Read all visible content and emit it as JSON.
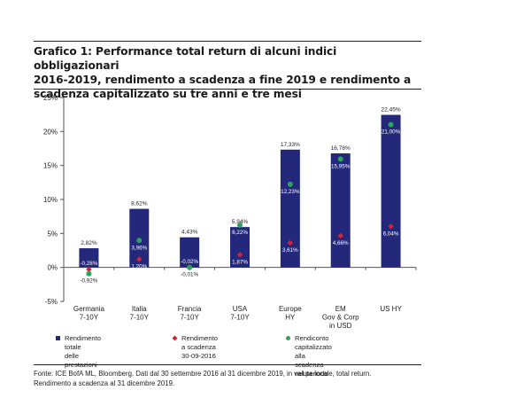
{
  "title": "Grafico 1: Performance total return di alcuni indici obbligazionari\n2016-2019, rendimento a scadenza a fine 2019 e rendimento a\nscadenza capitalizzato su tre anni e tre mesi",
  "footnote": {
    "line1": "Fonte: ICE BofA ML, Bloomberg. Dati dal 30 settembre 2016 al 31 dicembre 2019, in valuta locale, total return.",
    "line2": "Rendimento a scadenza al 31 dicembre 2019."
  },
  "colors": {
    "bar": "#23287a",
    "diamond": "#d2233c",
    "dot": "#2aa55c",
    "axis": "#555555"
  },
  "chart_data": {
    "type": "bar",
    "categories": [
      "Germania\n7-10Y",
      "Italia\n7-10Y",
      "Francia\n7-10Y",
      "USA\n7-10Y",
      "Europe\nHY",
      "EM\nGov & Corp\nin USD",
      "US HY"
    ],
    "ylim": [
      -5,
      25
    ],
    "yticks": [
      -5,
      0,
      5,
      10,
      15,
      20,
      25
    ],
    "ytick_labels": [
      "-5%",
      "0%",
      "5%",
      "10%",
      "15%",
      "20%",
      "25%"
    ],
    "grid": false,
    "legend_position": "bottom",
    "series": [
      {
        "name": "Rendimento totale\ndelle prestazioni",
        "kind": "bar",
        "values": [
          2.82,
          8.62,
          4.43,
          5.94,
          17.33,
          16.78,
          22.45
        ],
        "labels": [
          "2,82%",
          "8,62%",
          "4,43%",
          "5,94%",
          "17,33%",
          "16,78%",
          "22,45%"
        ]
      },
      {
        "name": "Rendimento a scadenza\n30-09-2016",
        "kind": "diamond",
        "values": [
          -0.28,
          1.2,
          -0.02,
          1.87,
          3.61,
          4.66,
          6.04
        ],
        "labels": [
          "-0,28%",
          "1,20%",
          "-0,02%",
          "1,87%",
          "3,61%",
          "4,66%",
          "6,04%"
        ]
      },
      {
        "name": "Rendiconto capitalizzato alla\nscadenza nel periodo",
        "kind": "dot",
        "values": [
          -0.92,
          3.96,
          -0.01,
          6.22,
          12.23,
          15.95,
          21.0
        ],
        "labels": [
          "-0,92%",
          "3,96%",
          "-0,01%",
          "6,22%",
          "12,23%",
          "15,95%",
          "21,00%"
        ]
      }
    ]
  }
}
